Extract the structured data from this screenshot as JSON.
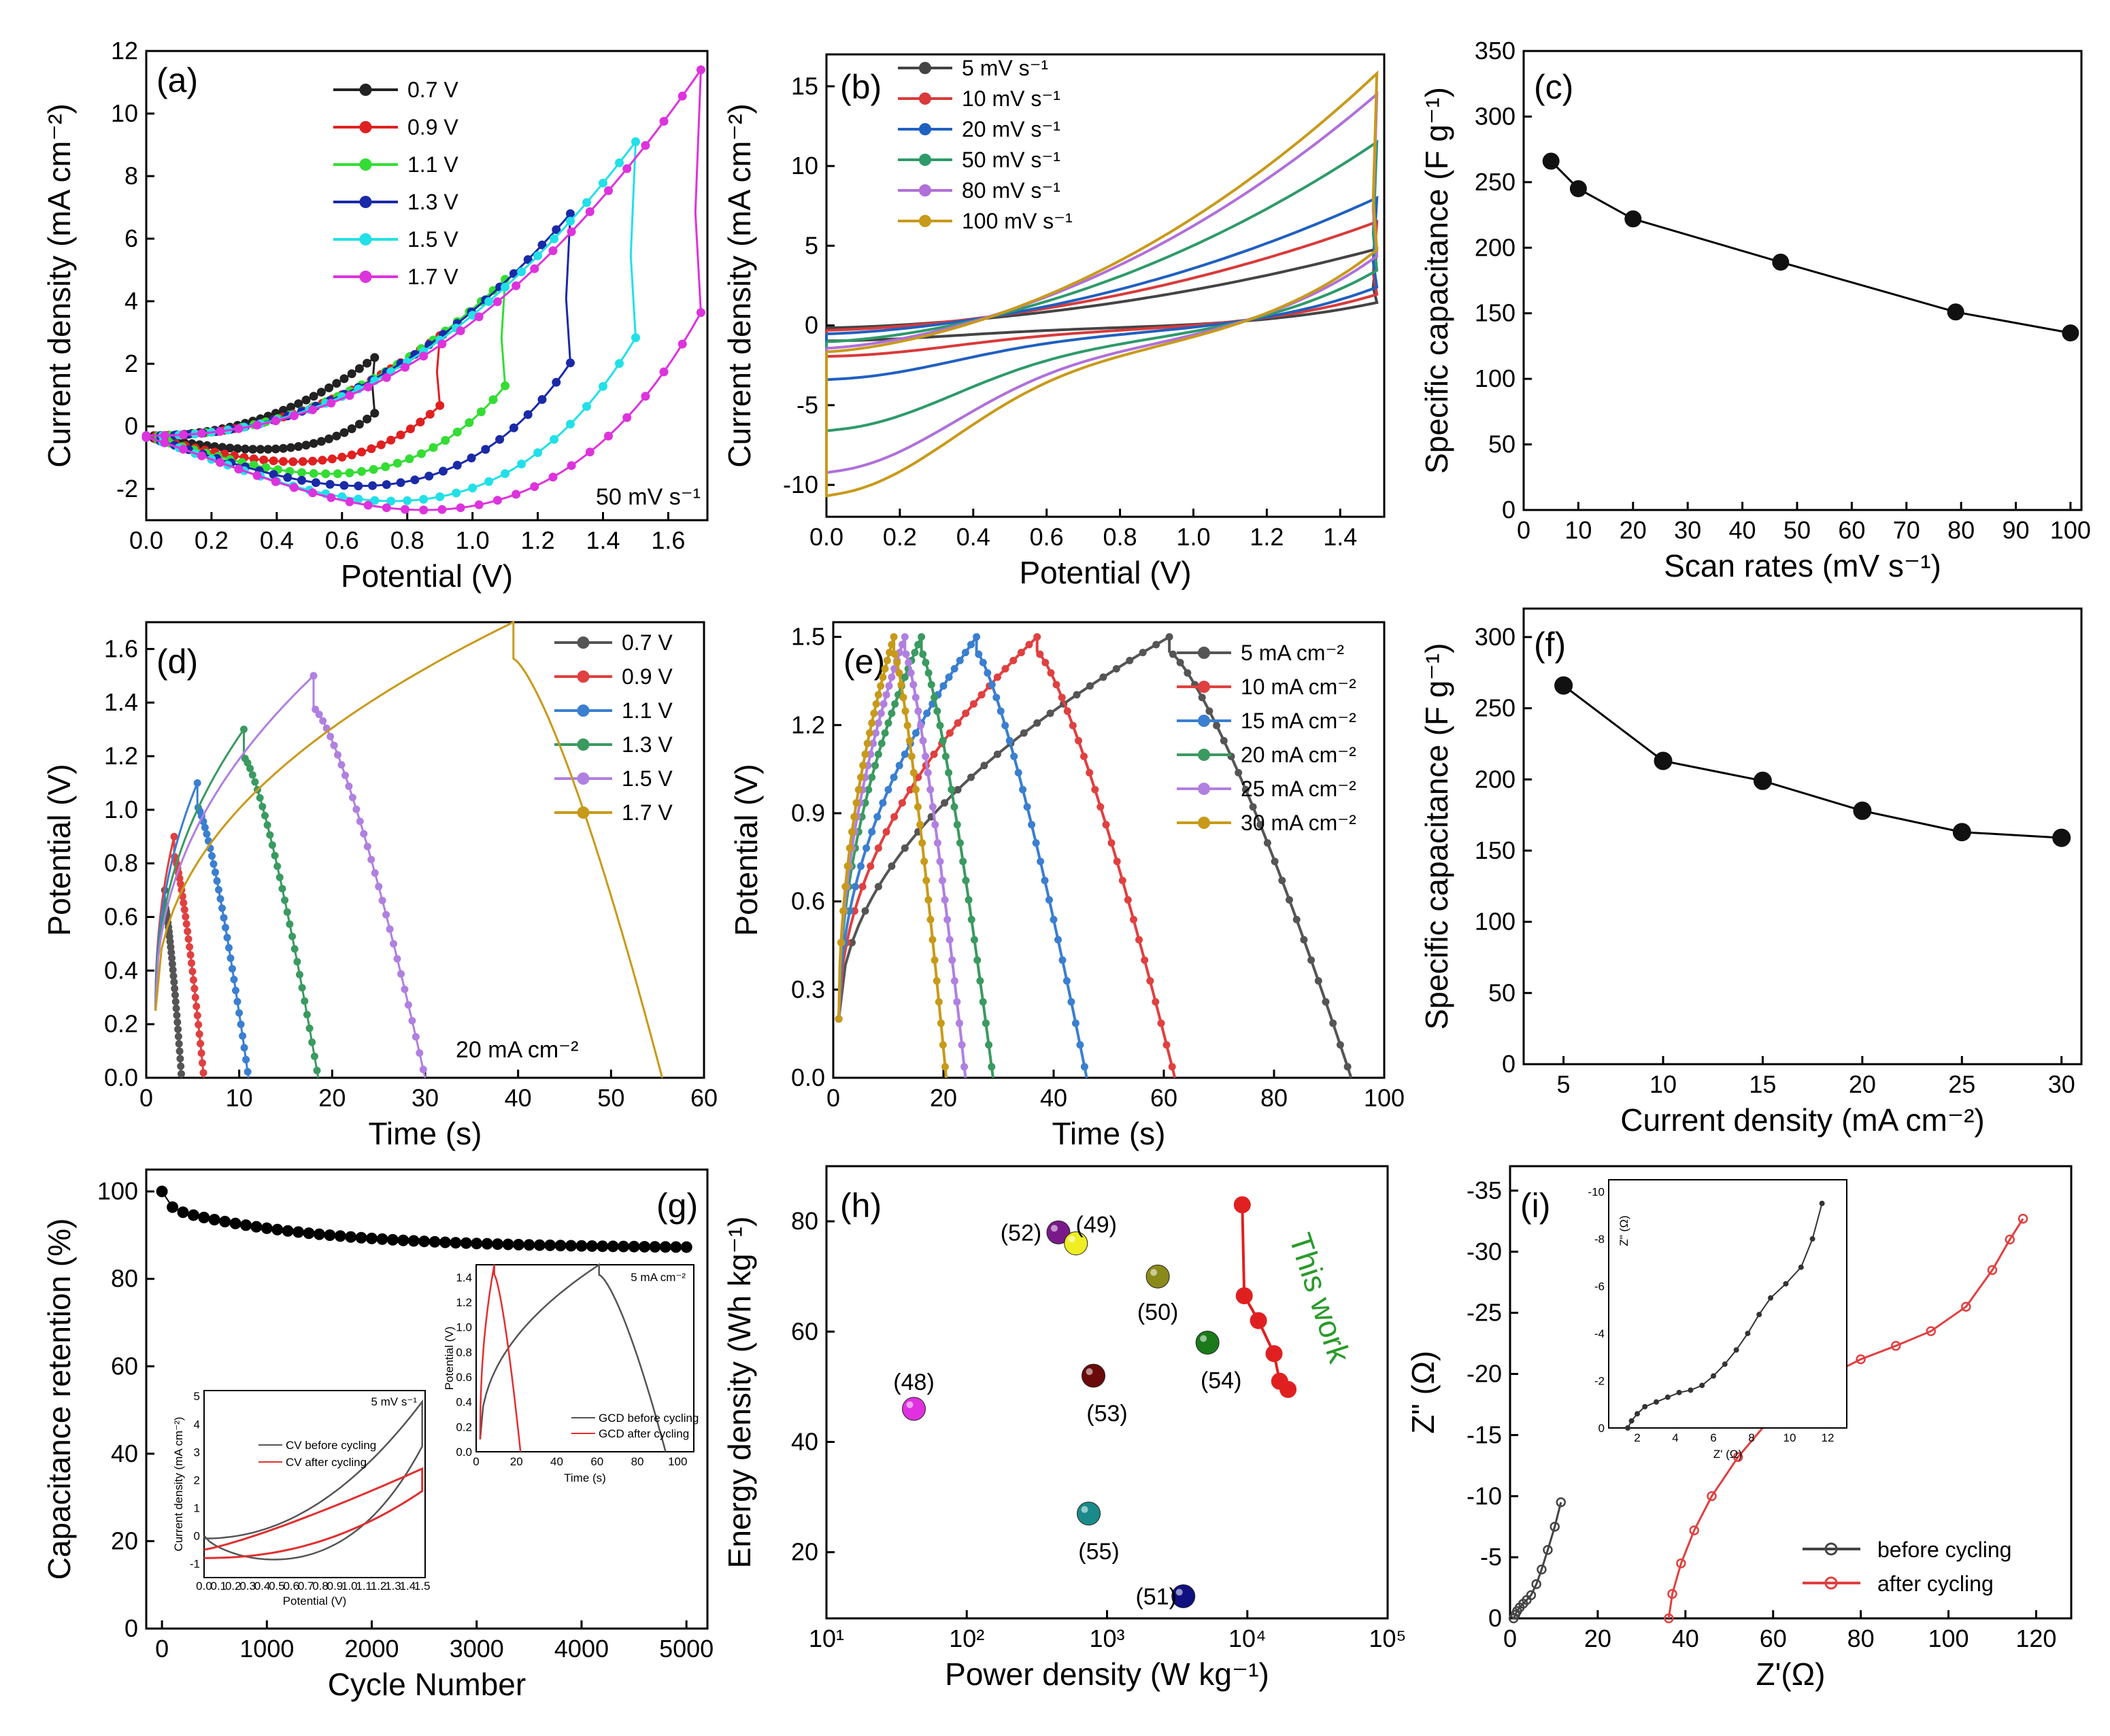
{
  "chart_data": [
    {
      "id": "a",
      "type": "line",
      "panel_label": "(a)",
      "xlabel": "Potential (V)",
      "ylabel": "Current density (mA cm⁻²)",
      "xlim": [
        0,
        1.72
      ],
      "ylim": [
        -3,
        12
      ],
      "xticks": [
        "0.0",
        "0.2",
        "0.4",
        "0.6",
        "0.8",
        "1.0",
        "1.2",
        "1.4",
        "1.6"
      ],
      "yticks": [
        "-2",
        "0",
        "2",
        "4",
        "6",
        "8",
        "10",
        "12"
      ],
      "annotation": "50 mV s⁻¹",
      "series": [
        {
          "name": "0.7 V",
          "color": "#222222",
          "vmax": 0.7,
          "imax": 2.2,
          "imin": -0.4
        },
        {
          "name": "0.9 V",
          "color": "#e02020",
          "vmax": 0.9,
          "imax": 2.9,
          "imin": -0.8
        },
        {
          "name": "1.1 V",
          "color": "#33dd33",
          "vmax": 1.1,
          "imax": 4.7,
          "imin": -1.2
        },
        {
          "name": "1.3 V",
          "color": "#1a2aa8",
          "vmax": 1.3,
          "imax": 6.8,
          "imin": -1.6
        },
        {
          "name": "1.5 V",
          "color": "#22e0e8",
          "vmax": 1.5,
          "imax": 9.1,
          "imin": -2.1
        },
        {
          "name": "1.7 V",
          "color": "#dd33dd",
          "vmax": 1.7,
          "imax": 11.4,
          "imin": -2.4
        }
      ]
    },
    {
      "id": "b",
      "type": "line",
      "panel_label": "(b)",
      "xlabel": "Potential (V)",
      "ylabel": "Current density (mA cm⁻²)",
      "xlim": [
        0,
        1.52
      ],
      "ylim": [
        -12,
        17
      ],
      "xticks": [
        "0.0",
        "0.2",
        "0.4",
        "0.6",
        "0.8",
        "1.0",
        "1.2",
        "1.4"
      ],
      "yticks": [
        "-10",
        "-5",
        "0",
        "5",
        "10",
        "15"
      ],
      "series": [
        {
          "name": "5 mV s⁻¹",
          "color": "#444444",
          "imax": 4.8,
          "imin": -1.0
        },
        {
          "name": "10 mV s⁻¹",
          "color": "#d93a3a",
          "imax": 6.5,
          "imin": -2.0
        },
        {
          "name": "20 mV s⁻¹",
          "color": "#2060c0",
          "imax": 8.0,
          "imin": -3.5
        },
        {
          "name": "50 mV s⁻¹",
          "color": "#2e9a6a",
          "imax": 11.5,
          "imin": -6.8
        },
        {
          "name": "80 mV s⁻¹",
          "color": "#b070d8",
          "imax": 14.5,
          "imin": -9.5
        },
        {
          "name": "100 mV s⁻¹",
          "color": "#c89a1a",
          "imax": 15.8,
          "imin": -11.0
        }
      ]
    },
    {
      "id": "c",
      "type": "line",
      "panel_label": "(c)",
      "xlabel": "Scan rates (mV s⁻¹)",
      "ylabel": "Specific capacitance (F g⁻¹)",
      "xlim": [
        0,
        102
      ],
      "ylim": [
        0,
        350
      ],
      "xticks": [
        "0",
        "10",
        "20",
        "30",
        "40",
        "50",
        "60",
        "70",
        "80",
        "90",
        "100"
      ],
      "yticks": [
        "0",
        "50",
        "100",
        "150",
        "200",
        "250",
        "300",
        "350"
      ],
      "x": [
        5,
        10,
        20,
        47,
        79,
        100
      ],
      "values": [
        266,
        245,
        222,
        189,
        151,
        135
      ]
    },
    {
      "id": "d",
      "type": "line",
      "panel_label": "(d)",
      "xlabel": "Time (s)",
      "ylabel": "Potential (V)",
      "xlim": [
        0,
        60
      ],
      "ylim": [
        0,
        1.7
      ],
      "xticks": [
        "0",
        "10",
        "20",
        "30",
        "40",
        "50",
        "60"
      ],
      "yticks": [
        "0.0",
        "0.2",
        "0.4",
        "0.6",
        "0.8",
        "1.0",
        "1.2",
        "1.4",
        "1.6"
      ],
      "annotation": "20 mA cm⁻²",
      "series": [
        {
          "name": "0.7 V",
          "color": "#555555",
          "vmax": 0.7,
          "tc": 2.0,
          "td": 3.8
        },
        {
          "name": "0.9 V",
          "color": "#e04040",
          "vmax": 0.9,
          "tc": 3.0,
          "td": 6.2
        },
        {
          "name": "1.1 V",
          "color": "#3a7fd0",
          "vmax": 1.1,
          "tc": 5.5,
          "td": 11.0
        },
        {
          "name": "1.3 V",
          "color": "#3a9a60",
          "vmax": 1.3,
          "tc": 10.5,
          "td": 18.5
        },
        {
          "name": "1.5 V",
          "color": "#b080e0",
          "vmax": 1.5,
          "tc": 18.0,
          "td": 30.0
        },
        {
          "name": "1.7 V",
          "color": "#c89a1a",
          "vmax": 1.7,
          "tc": 39.5,
          "td": 55.5
        }
      ]
    },
    {
      "id": "e",
      "type": "line",
      "panel_label": "(e)",
      "xlabel": "Time (s)",
      "ylabel": "Potential (V)",
      "xlim": [
        0,
        100
      ],
      "ylim": [
        0,
        1.55
      ],
      "xticks": [
        "0",
        "20",
        "40",
        "60",
        "80",
        "100"
      ],
      "yticks": [
        "0.0",
        "0.3",
        "0.6",
        "0.9",
        "1.2",
        "1.5"
      ],
      "series": [
        {
          "name": "5 mA cm⁻²",
          "color": "#555555",
          "tc": 61,
          "td": 94
        },
        {
          "name": "10 mA cm⁻²",
          "color": "#e04040",
          "tc": 37,
          "td": 62
        },
        {
          "name": "15 mA cm⁻²",
          "color": "#3a7fd0",
          "tc": 26,
          "td": 46
        },
        {
          "name": "20 mA cm⁻²",
          "color": "#3a9a60",
          "tc": 16,
          "td": 29
        },
        {
          "name": "25 mA cm⁻²",
          "color": "#b080e0",
          "tc": 13,
          "td": 24
        },
        {
          "name": "30 mA cm⁻²",
          "color": "#c89a1a",
          "tc": 11,
          "td": 20.5
        }
      ]
    },
    {
      "id": "f",
      "type": "line",
      "panel_label": "(f)",
      "xlabel": "Current density (mA cm⁻²)",
      "ylabel": "Specific capacitance (F g⁻¹)",
      "xlim": [
        3,
        31
      ],
      "ylim": [
        0,
        320
      ],
      "xticks": [
        "5",
        "10",
        "15",
        "20",
        "25",
        "30"
      ],
      "yticks": [
        "0",
        "50",
        "100",
        "150",
        "200",
        "250",
        "300"
      ],
      "x": [
        5,
        10,
        15,
        20,
        25,
        30
      ],
      "values": [
        266,
        213,
        199,
        178,
        163,
        159
      ]
    },
    {
      "id": "g",
      "type": "line",
      "panel_label": "(g)",
      "xlabel": "Cycle Number",
      "ylabel": "Capacitance retention (%)",
      "xlim": [
        -150,
        5200
      ],
      "ylim": [
        0,
        105
      ],
      "xticks": [
        "0",
        "1000",
        "2000",
        "3000",
        "4000",
        "5000"
      ],
      "yticks": [
        "0",
        "20",
        "40",
        "60",
        "80",
        "100"
      ],
      "retention_start": 100,
      "retention_end": 87,
      "inset_cv": {
        "xlabel": "Potential (V)",
        "ylabel": "Current density (mA cm⁻²)",
        "annotation": "5 mV s⁻¹",
        "xticks": [
          "0.0",
          "0.1",
          "0.2",
          "0.3",
          "0.4",
          "0.5",
          "0.6",
          "0.7",
          "0.8",
          "0.9",
          "1.0",
          "1.1",
          "1.2",
          "1.3",
          "1.4",
          "1.5"
        ],
        "yticks": [
          "-1",
          "0",
          "1",
          "2",
          "3",
          "4",
          "5"
        ],
        "legend": [
          "CV before cycling",
          "CV after cycling"
        ]
      },
      "inset_gcd": {
        "xlabel": "Time (s)",
        "ylabel": "Potential (V)",
        "annotation": "5 mA cm⁻²",
        "xticks": [
          "0",
          "20",
          "40",
          "60",
          "80",
          "100"
        ],
        "yticks": [
          "0.0",
          "0.2",
          "0.4",
          "0.6",
          "0.8",
          "1.0",
          "1.2",
          "1.4"
        ],
        "legend": [
          "GCD before cycling",
          "GCD after cycling"
        ]
      }
    },
    {
      "id": "h",
      "type": "scatter",
      "panel_label": "(h)",
      "xlabel": "Power density (W kg⁻¹)",
      "ylabel": "Energy density (Wh kg⁻¹)",
      "xscale": "log",
      "xlim": [
        10,
        100000
      ],
      "ylim": [
        8,
        90
      ],
      "xticks": [
        "10¹",
        "10²",
        "10³",
        "10⁴",
        "10⁵"
      ],
      "yticks": [
        "20",
        "40",
        "60",
        "80"
      ],
      "points": [
        {
          "label": "(52)",
          "x": 450,
          "y": 78,
          "color": "#7a1a8a"
        },
        {
          "label": "(49)",
          "x": 600,
          "y": 76,
          "color": "#eeee22"
        },
        {
          "label": "(50)",
          "x": 2300,
          "y": 70,
          "color": "#8a8a1a"
        },
        {
          "label": "(54)",
          "x": 5200,
          "y": 58,
          "color": "#1a7a1a"
        },
        {
          "label": "(53)",
          "x": 800,
          "y": 52,
          "color": "#6a0a0a"
        },
        {
          "label": "(48)",
          "x": 42,
          "y": 46,
          "color": "#e030e0"
        },
        {
          "label": "(55)",
          "x": 740,
          "y": 27,
          "color": "#1a8a8a"
        },
        {
          "label": "(51)",
          "x": 3500,
          "y": 12,
          "color": "#101080"
        }
      ],
      "this_work": {
        "label": "This work",
        "color": "#e02020",
        "x": [
          9200,
          9500,
          12000,
          15500,
          17000,
          19500
        ],
        "y": [
          83,
          66.5,
          62,
          56,
          51,
          49.5
        ]
      }
    },
    {
      "id": "i",
      "type": "line",
      "panel_label": "(i)",
      "xlabel": "Z'(Ω)",
      "ylabel": "Z\" (Ω)",
      "xlim": [
        0,
        128
      ],
      "ylim": [
        0,
        -37
      ],
      "xticks": [
        "0",
        "20",
        "40",
        "60",
        "80",
        "100",
        "120"
      ],
      "yticks": [
        "0",
        "-5",
        "-10",
        "-15",
        "-20",
        "-25",
        "-30",
        "-35"
      ],
      "series": [
        {
          "name": "before cycling",
          "color": "#444444",
          "x": [
            0.8,
            1.2,
            1.6,
            2.2,
            3.0,
            3.8,
            4.8,
            6.0,
            7.2,
            8.6,
            10.2,
            11.6
          ],
          "y": [
            0,
            -0.3,
            -0.6,
            -0.9,
            -1.2,
            -1.5,
            -1.9,
            -2.8,
            -4.0,
            -5.6,
            -7.5,
            -9.5
          ]
        },
        {
          "name": "after cycling",
          "color": "#e04040",
          "x": [
            36.2,
            37,
            39,
            42,
            46,
            52,
            60,
            70,
            80,
            88,
            96,
            104,
            110,
            114,
            117
          ],
          "y": [
            0,
            -2,
            -4.5,
            -7.2,
            -10,
            -13.2,
            -16.6,
            -19.4,
            -21.2,
            -22.3,
            -23.5,
            -25.5,
            -28.5,
            -31,
            -32.7
          ]
        }
      ],
      "inset": {
        "xlabel": "Z' (Ω)",
        "ylabel": "Z\" (Ω)",
        "xticks": [
          "2",
          "4",
          "6",
          "8",
          "10",
          "12"
        ],
        "yticks": [
          "0",
          "-2",
          "-4",
          "-6",
          "-8",
          "-10"
        ]
      }
    }
  ]
}
